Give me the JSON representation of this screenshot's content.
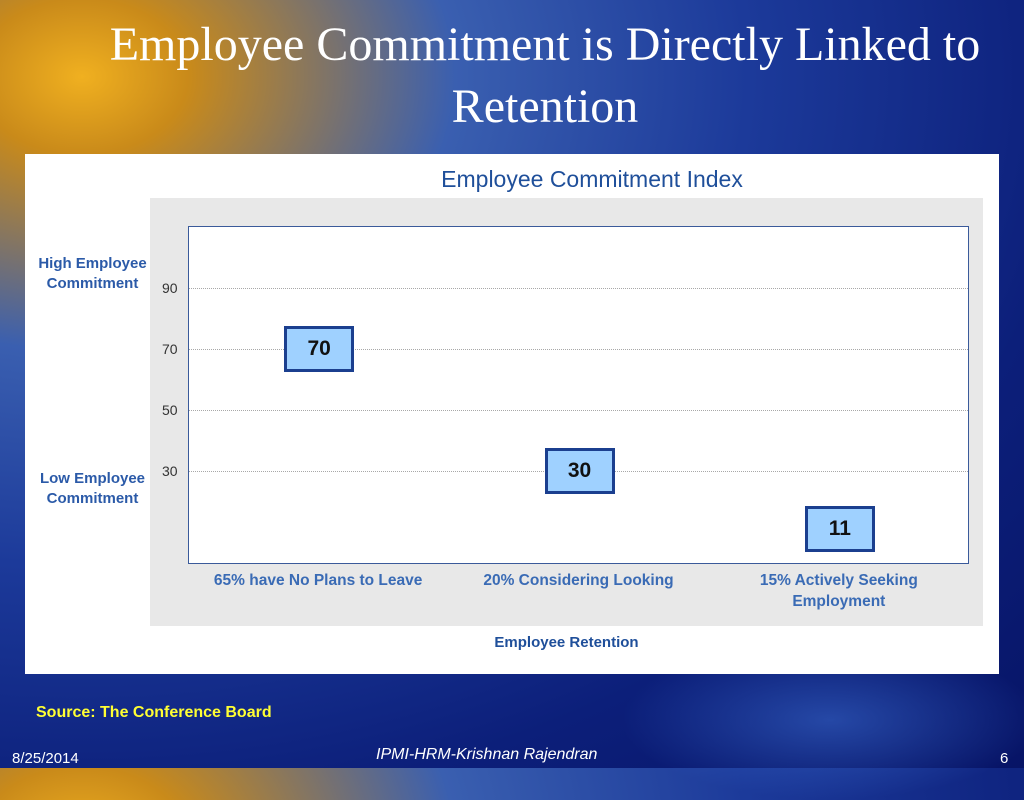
{
  "slide": {
    "title": "Employee Commitment is Directly Linked to Retention",
    "source": "Source: The Conference Board",
    "footer_date": "8/25/2014",
    "footer_center": "IPMI-HRM-Krishnan Rajendran",
    "page_number": "6"
  },
  "side_labels": {
    "high": "High Employee Commitment",
    "low": "Low Employee Commitment"
  },
  "colors": {
    "box_fill": "#9fd1ff",
    "box_border": "#1b3f8f",
    "title_blue": "#1f4f9a",
    "source_yellow": "#ffff33"
  },
  "chart_data": {
    "type": "scatter",
    "title": "Employee Commitment Index",
    "xlabel": "Employee Retention",
    "ylabel": "",
    "categories": [
      "65% have No Plans to Leave",
      "20% Considering Looking",
      "15% Actively Seeking Employment"
    ],
    "values": [
      70,
      30,
      11
    ],
    "data_labels": [
      "70",
      "30",
      "11"
    ],
    "yticks": [
      30,
      50,
      70,
      90
    ],
    "ylim": [
      0,
      110
    ],
    "grid": true,
    "legend": "none"
  }
}
